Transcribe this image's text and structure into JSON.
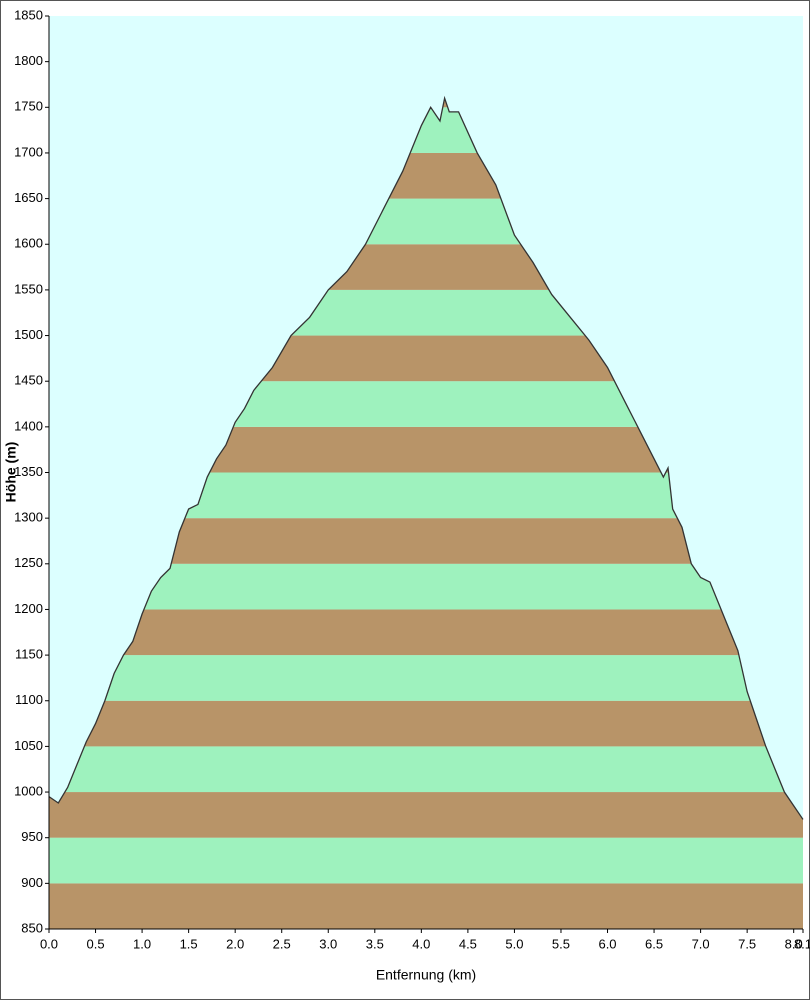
{
  "chart_data": {
    "type": "area",
    "y_label": "Höhe (m)",
    "x_label": "Entfernung  (km)",
    "x": [
      0.0,
      0.1,
      0.2,
      0.3,
      0.4,
      0.5,
      0.6,
      0.7,
      0.8,
      0.9,
      1.0,
      1.1,
      1.2,
      1.3,
      1.4,
      1.5,
      1.6,
      1.7,
      1.8,
      1.9,
      2.0,
      2.1,
      2.2,
      2.4,
      2.6,
      2.8,
      3.0,
      3.2,
      3.4,
      3.6,
      3.8,
      4.0,
      4.1,
      4.2,
      4.25,
      4.3,
      4.4,
      4.6,
      4.8,
      5.0,
      5.2,
      5.4,
      5.6,
      5.8,
      6.0,
      6.2,
      6.4,
      6.5,
      6.6,
      6.65,
      6.7,
      6.8,
      6.9,
      7.0,
      7.1,
      7.2,
      7.3,
      7.4,
      7.5,
      7.6,
      7.7,
      7.8,
      7.9,
      8.0,
      8.1
    ],
    "series": [
      {
        "values": [
          995,
          988,
          1005,
          1030,
          1055,
          1075,
          1100,
          1130,
          1150,
          1165,
          1195,
          1220,
          1235,
          1245,
          1285,
          1310,
          1315,
          1345,
          1365,
          1380,
          1405,
          1420,
          1440,
          1465,
          1500,
          1520,
          1550,
          1570,
          1600,
          1640,
          1680,
          1730,
          1750,
          1735,
          1760,
          1745,
          1745,
          1700,
          1665,
          1610,
          1580,
          1545,
          1520,
          1495,
          1465,
          1425,
          1385,
          1365,
          1345,
          1355,
          1310,
          1290,
          1250,
          1235,
          1230,
          1205,
          1180,
          1155,
          1110,
          1080,
          1050,
          1025,
          1000,
          985,
          970
        ],
        "color": "#333333"
      }
    ],
    "band_colors": [
      "#b89468",
      "#9ef2be"
    ],
    "background": "#dcffff",
    "xlim": [
      0.0,
      8.1
    ],
    "ylim": [
      850,
      1850
    ],
    "xticks": [
      {
        "value": 0,
        "label": "0.0"
      },
      0.5,
      {
        "value": 1,
        "label": "1.0"
      },
      1.5,
      {
        "value": 2,
        "label": "2.0"
      },
      2.5,
      {
        "value": 3,
        "label": "3.0"
      },
      3.5,
      {
        "value": 4,
        "label": "4.0"
      },
      4.5,
      {
        "value": 5,
        "label": "5.0"
      },
      5.5,
      {
        "value": 6,
        "label": "6.0"
      },
      6.5,
      {
        "value": 7,
        "label": "7.0"
      },
      7.5,
      {
        "value": 8,
        "label": "8.0"
      },
      8.1
    ],
    "yticks": [
      850,
      900,
      950,
      1000,
      1050,
      1100,
      1150,
      1200,
      1250,
      1300,
      1350,
      1400,
      1450,
      1500,
      1550,
      1600,
      1650,
      1700,
      1750,
      1800,
      1850
    ]
  }
}
